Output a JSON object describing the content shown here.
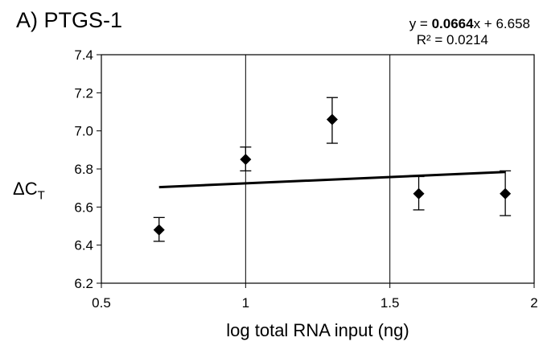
{
  "chart_data": {
    "type": "scatter",
    "title": "A) PTGS-1",
    "equation": {
      "prefix": "y = ",
      "slope": "0.0664",
      "suffix": "x + 6.658",
      "r2": "R² = 0.0214",
      "slope_value": 0.0664,
      "intercept_value": 6.658
    },
    "xlabel": "log total RNA  input (ng)",
    "ylabel": {
      "main": "ΔC",
      "sub": "T"
    },
    "xlim": [
      0.5,
      2
    ],
    "ylim": [
      6.2,
      7.4
    ],
    "x_ticks": [
      {
        "v": 0.5,
        "label": "0.5"
      },
      {
        "v": 1,
        "label": "1"
      },
      {
        "v": 1.5,
        "label": "1.5"
      },
      {
        "v": 2,
        "label": "2"
      }
    ],
    "y_ticks": [
      {
        "v": 6.2,
        "label": "6.2"
      },
      {
        "v": 6.4,
        "label": "6.4"
      },
      {
        "v": 6.6,
        "label": "6.6"
      },
      {
        "v": 6.8,
        "label": "6.8"
      },
      {
        "v": 7.0,
        "label": "7.0"
      },
      {
        "v": 7.2,
        "label": "7.2"
      },
      {
        "v": 7.4,
        "label": "7.4"
      }
    ],
    "points": [
      {
        "x": 0.7,
        "y": 6.48,
        "err_low": 6.42,
        "err_high": 6.545
      },
      {
        "x": 1.0,
        "y": 6.85,
        "err_low": 6.79,
        "err_high": 6.915
      },
      {
        "x": 1.3,
        "y": 7.06,
        "err_low": 6.935,
        "err_high": 7.175
      },
      {
        "x": 1.6,
        "y": 6.67,
        "err_low": 6.585,
        "err_high": 6.76
      },
      {
        "x": 1.9,
        "y": 6.67,
        "err_low": 6.555,
        "err_high": 6.79
      }
    ],
    "trendline": {
      "x": [
        0.7,
        1.9
      ]
    },
    "grid": {
      "vertical": true,
      "horizontal": false
    }
  }
}
